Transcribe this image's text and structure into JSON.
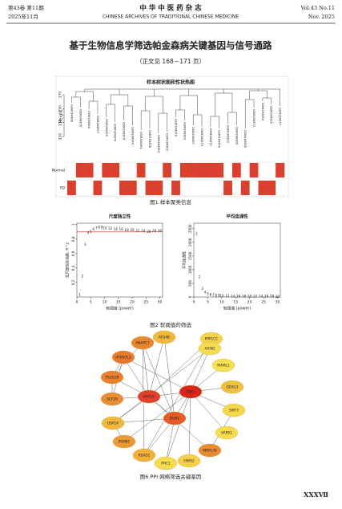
{
  "header": {
    "volume_cn": "第43卷 第11期",
    "date_cn": "2025年11月",
    "journal_cn": "中 华 中 医 药 杂 志",
    "journal_en": "CHINESE ARCHIVES OF TRADITIONAL CHINESE MEDICINE",
    "volume_en": "Vol.43 No.11",
    "date_en": "Nov. 2025"
  },
  "title": "基于生物信息学筛选帕金森病关键基因与信号通路",
  "see_text": "（正文见 168－171 页）",
  "figure1": {
    "title": "样本树状图和性状热图",
    "ylabel": "Height",
    "yticks": [
      110,
      130,
      150,
      170
    ],
    "leaves": [
      "GSM184368",
      "GSM184376",
      "GSM184364",
      "GSM184357",
      "GSM184365",
      "GSM184369",
      "GSM184370",
      "GSM184374",
      "GSM184361",
      "GSM184358",
      "GSM184360",
      "GSM184362",
      "GSM184378",
      "GSM184359",
      "GSM184367",
      "GSM184375",
      "GSM184371",
      "GSM184373",
      "GSM184363",
      "GSM184366",
      "GSM184356",
      "GSM184372",
      "GSM184354",
      "GSM184355",
      "GSM184377"
    ],
    "rows": [
      {
        "name": "Normal",
        "cells": [
          0,
          1,
          1,
          0,
          1,
          1,
          0,
          0,
          1,
          0,
          0,
          1,
          0,
          1,
          1,
          1,
          1,
          1,
          0,
          1,
          0,
          1,
          0,
          0,
          1
        ]
      },
      {
        "name": "PD",
        "cells": [
          1,
          0,
          0,
          1,
          0,
          0,
          1,
          1,
          0,
          1,
          1,
          0,
          1,
          0,
          0,
          0,
          0,
          0,
          1,
          0,
          1,
          0,
          1,
          1,
          0
        ]
      }
    ],
    "color": "#d9402e",
    "caption": "图1  样本聚类信息"
  },
  "figure2": {
    "panels": [
      {
        "type": "scatter",
        "title": "尺度独立性",
        "xlabel": "软阈值 (power)",
        "ylabel": "无尺度拟合指数, R^2",
        "xlim": [
          0,
          31
        ],
        "ylim": [
          0,
          1.02
        ],
        "xticks": [
          0,
          5,
          10,
          15,
          20,
          25,
          30
        ],
        "yticks": [
          0.2,
          0.4,
          0.6,
          0.8,
          1.0
        ],
        "hline": 0.9,
        "color": "#c8322a",
        "x": [
          1,
          2,
          3,
          4,
          5,
          6,
          7,
          8,
          9,
          10,
          12,
          14,
          16,
          18,
          20,
          22,
          24,
          26,
          28,
          30
        ],
        "values": [
          0.03,
          0.28,
          0.72,
          0.88,
          0.9,
          0.93,
          0.95,
          0.96,
          0.96,
          0.95,
          0.94,
          0.93,
          0.93,
          0.92,
          0.92,
          0.91,
          0.91,
          0.9,
          0.91,
          0.91
        ]
      },
      {
        "type": "scatter",
        "title": "平均连通性",
        "xlabel": "软阈值 (power)",
        "ylabel": "平均连通性",
        "xlim": [
          0,
          31
        ],
        "ylim": [
          0,
          2700
        ],
        "xticks": [
          0,
          5,
          10,
          15,
          20,
          25,
          30
        ],
        "yticks": [
          0,
          500,
          1000,
          1500,
          2000,
          2500
        ],
        "color": "#c8322a",
        "x": [
          1,
          2,
          3,
          4,
          5,
          6,
          7,
          8,
          9,
          10,
          12,
          14,
          16,
          18,
          20,
          22,
          24,
          26,
          28,
          30
        ],
        "values": [
          2300,
          720,
          300,
          160,
          100,
          70,
          55,
          45,
          38,
          32,
          25,
          20,
          17,
          15,
          13,
          11,
          10,
          9,
          8,
          7
        ]
      }
    ],
    "caption": "图2  软阈值的筛选"
  },
  "figure6": {
    "nodes": [
      {
        "name": "ATG4B",
        "color": "#f0b93c"
      },
      {
        "name": "PPP1CC",
        "color": "#f4d34a"
      },
      {
        "name": "ANAPC7",
        "color": "#e88632"
      },
      {
        "name": "ATXN7L2",
        "color": "#e87a2e"
      },
      {
        "name": "AXIN1",
        "color": "#f6dc4e"
      },
      {
        "name": "MAML1",
        "color": "#f6e052"
      },
      {
        "name": "TADA2B",
        "color": "#e88030"
      },
      {
        "name": "DDX23",
        "color": "#f0c040"
      },
      {
        "name": "KAT2A",
        "color": "#e0402c"
      },
      {
        "name": "CSE1",
        "color": "#d8261e"
      },
      {
        "name": "SCF29",
        "color": "#ea8c34"
      },
      {
        "name": "SIRT7",
        "color": "#f4d84a"
      },
      {
        "name": "DDB1",
        "color": "#e65a2a"
      },
      {
        "name": "USP14",
        "color": "#f0b83c"
      },
      {
        "name": "VARS1",
        "color": "#f6dc4e"
      },
      {
        "name": "PSMB1",
        "color": "#ec9a36"
      },
      {
        "name": "MRPL30",
        "color": "#e88a32"
      },
      {
        "name": "RSAD1",
        "color": "#f0b03a"
      },
      {
        "name": "FARS2",
        "color": "#f4d048"
      },
      {
        "name": "PHC1",
        "color": "#f6dc4e"
      }
    ],
    "caption": "图6  PPI 网络筛选关键基因"
  },
  "page_number": "XXXⅦ"
}
